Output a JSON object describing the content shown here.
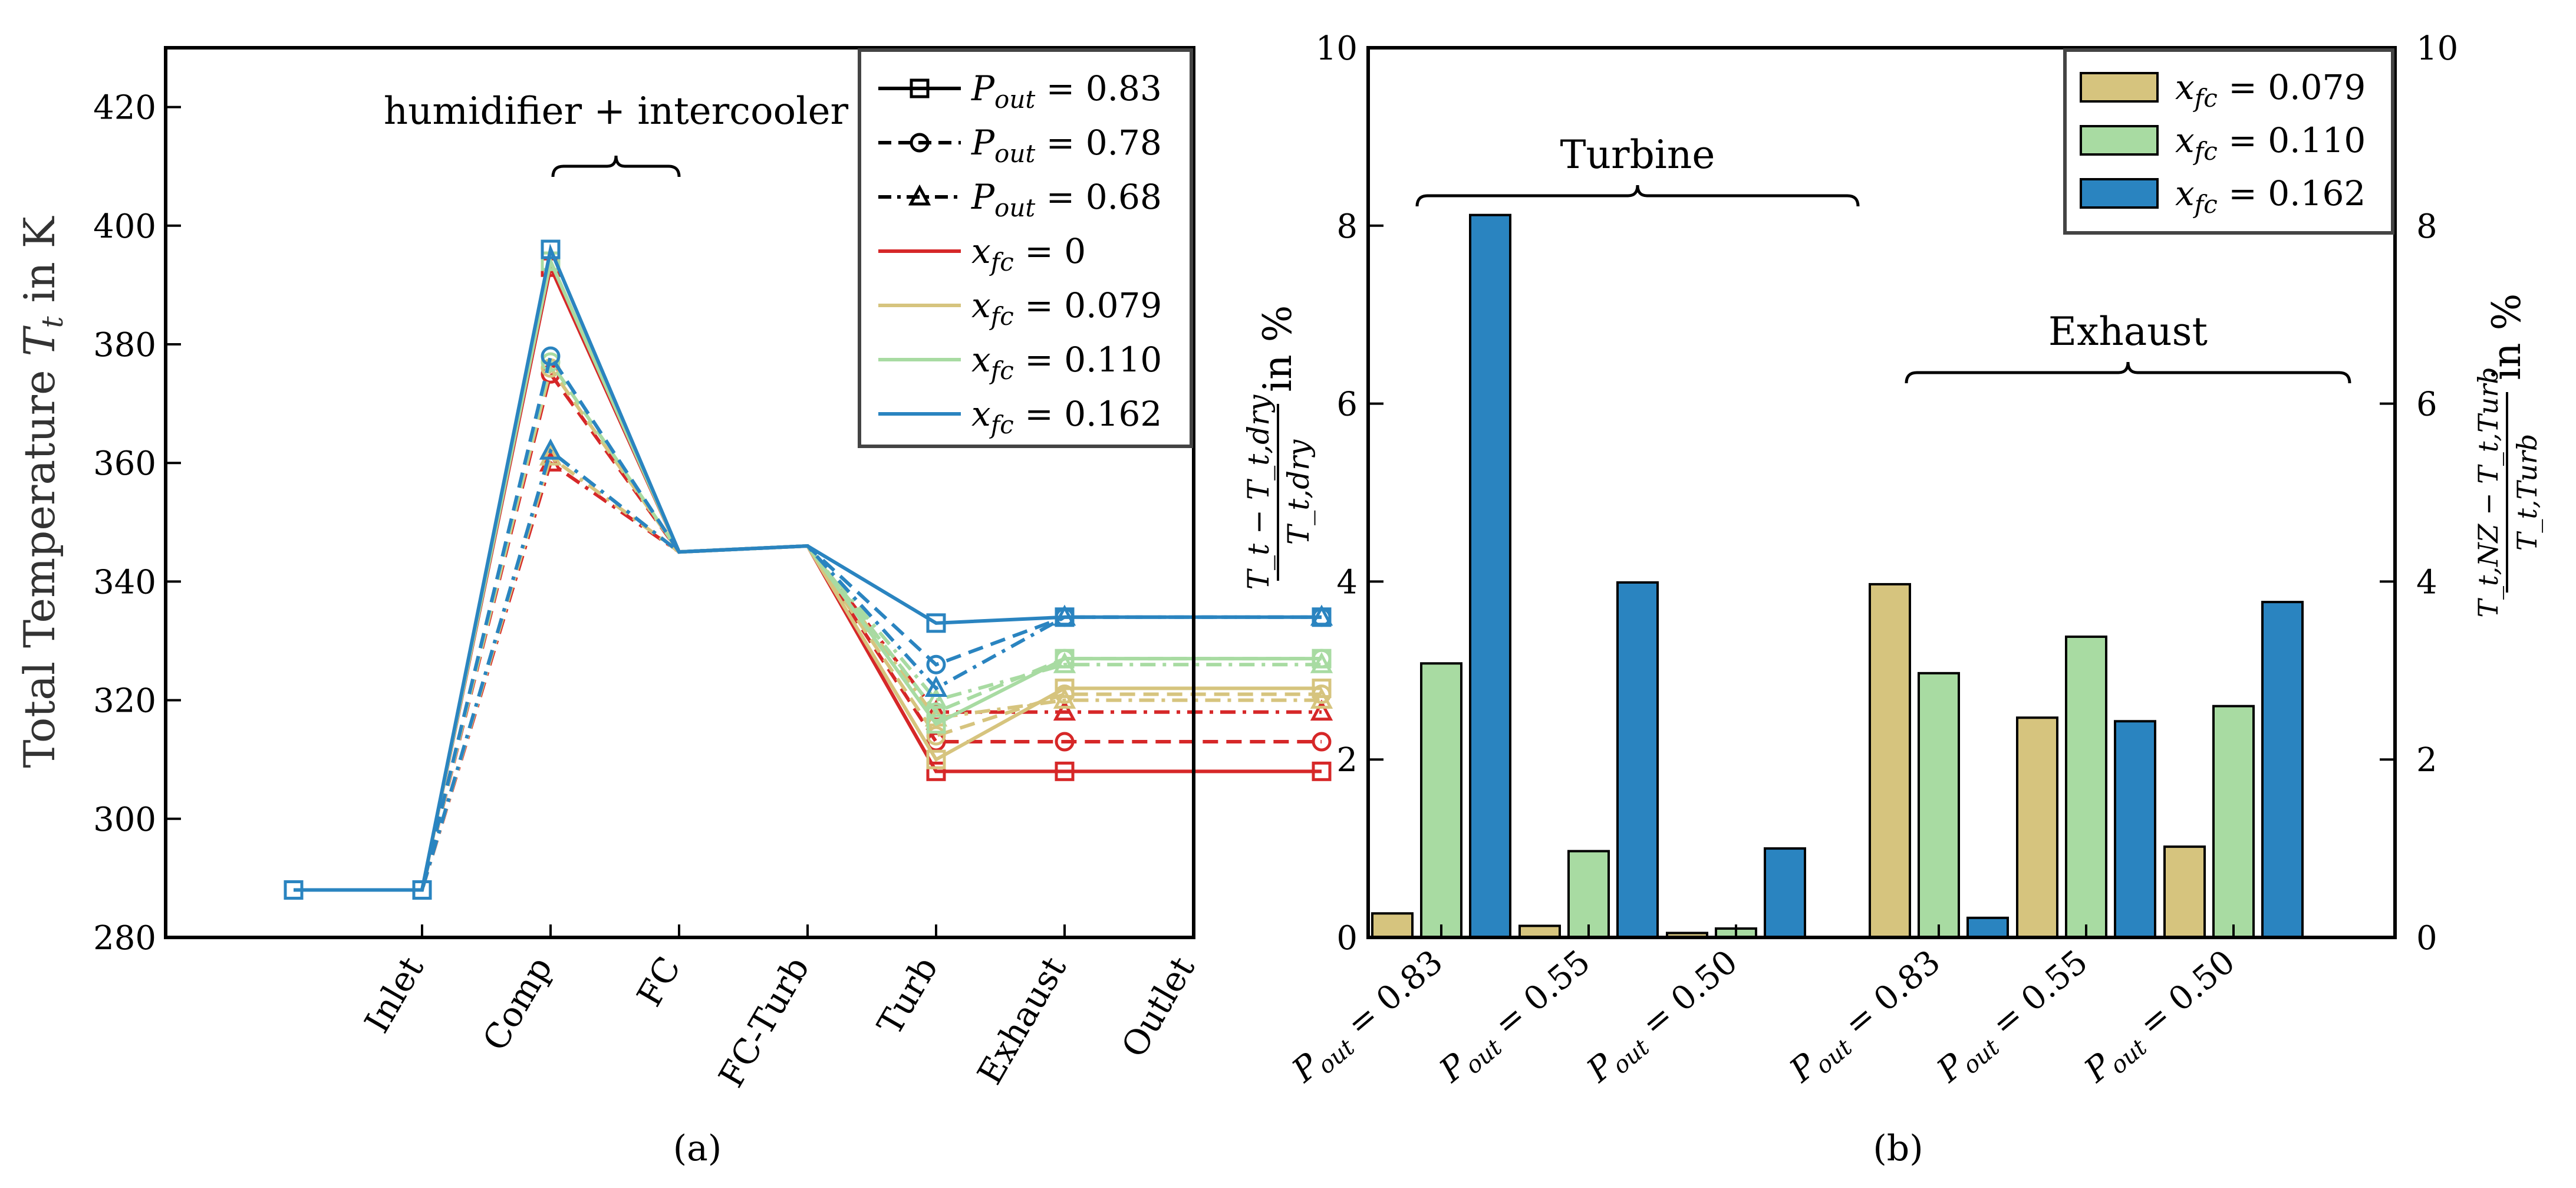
{
  "chart_data": [
    {
      "type": "line",
      "panel_label": "(a)",
      "title": "",
      "xlabel": "",
      "ylabel": "Total Temperature T_t in K",
      "ylabel_parts": {
        "pre": "Total Temperature ",
        "var": "T",
        "sub": "t",
        "post": " in K"
      },
      "ylim": [
        280,
        430
      ],
      "yticks": [
        "280",
        "300",
        "320",
        "340",
        "360",
        "380",
        "400",
        "420"
      ],
      "categories": [
        "Inlet",
        "Comp",
        "FC",
        "FC-Turb",
        "Turb",
        "Exhaust",
        "Outlet"
      ],
      "annotation": "humidifier + intercooler",
      "grid": false,
      "legend_position": "top-right",
      "legend": [
        {
          "label": "P_out = 0.83",
          "var": "P",
          "sub": "out",
          "rest": " = 0.83",
          "style": "solid",
          "marker": "square",
          "color": "#000000"
        },
        {
          "label": "P_out = 0.78",
          "var": "P",
          "sub": "out",
          "rest": " = 0.78",
          "style": "dashed",
          "marker": "circle",
          "color": "#000000"
        },
        {
          "label": "P_out = 0.68",
          "var": "P",
          "sub": "out",
          "rest": " = 0.68",
          "style": "dashdot",
          "marker": "triangle",
          "color": "#000000"
        },
        {
          "label": "x_fc = 0",
          "var": "x",
          "sub": "fc",
          "rest": " = 0",
          "style": "solid",
          "marker": "none",
          "color": "#d62728"
        },
        {
          "label": "x_fc = 0.079",
          "var": "x",
          "sub": "fc",
          "rest": " = 0.079",
          "style": "solid",
          "marker": "none",
          "color": "#d6c47e"
        },
        {
          "label": "x_fc = 0.110",
          "var": "x",
          "sub": "fc",
          "rest": " = 0.110",
          "style": "solid",
          "marker": "none",
          "color": "#a8dba2"
        },
        {
          "label": "x_fc = 0.162",
          "var": "x",
          "sub": "fc",
          "rest": " = 0.162",
          "style": "solid",
          "marker": "none",
          "color": "#2a84c0"
        }
      ],
      "series": [
        {
          "name": "x_fc=0, P_out=0.83",
          "color": "#d62728",
          "style": "solid",
          "marker": "square",
          "x": [
            0,
            1,
            2,
            3,
            4,
            5,
            6,
            7,
            8
          ],
          "values": [
            288,
            288,
            393,
            345,
            346,
            308,
            308,
            308,
            308
          ]
        },
        {
          "name": "x_fc=0, P_out=0.78",
          "color": "#d62728",
          "style": "dashed",
          "marker": "circle",
          "x": [
            0,
            1,
            2,
            3,
            4,
            5,
            6,
            7,
            8
          ],
          "values": [
            288,
            288,
            375,
            345,
            346,
            313,
            313,
            313,
            313
          ]
        },
        {
          "name": "x_fc=0, P_out=0.68",
          "color": "#d62728",
          "style": "dashdot",
          "marker": "triangle",
          "x": [
            0,
            1,
            2,
            3,
            4,
            5,
            6,
            7,
            8
          ],
          "values": [
            288,
            288,
            360,
            345,
            346,
            318,
            318,
            318,
            318
          ]
        },
        {
          "name": "x_fc=0.079, P_out=0.83",
          "color": "#d6c47e",
          "style": "solid",
          "marker": "square",
          "x": [
            0,
            1,
            2,
            3,
            4,
            5,
            6,
            7,
            8
          ],
          "values": [
            288,
            288,
            394,
            345,
            346,
            310,
            322,
            322,
            322
          ]
        },
        {
          "name": "x_fc=0.079, P_out=0.78",
          "color": "#d6c47e",
          "style": "dashed",
          "marker": "circle",
          "x": [
            0,
            1,
            2,
            3,
            4,
            5,
            6,
            7,
            8
          ],
          "values": [
            288,
            288,
            376,
            345,
            346,
            314,
            321,
            321,
            321
          ]
        },
        {
          "name": "x_fc=0.079, P_out=0.68",
          "color": "#d6c47e",
          "style": "dashdot",
          "marker": "triangle",
          "x": [
            0,
            1,
            2,
            3,
            4,
            5,
            6,
            7,
            8
          ],
          "values": [
            288,
            288,
            361,
            345,
            346,
            317,
            320,
            320,
            320
          ]
        },
        {
          "name": "x_fc=0.110, P_out=0.83",
          "color": "#a8dba2",
          "style": "solid",
          "marker": "square",
          "x": [
            0,
            1,
            2,
            3,
            4,
            5,
            6,
            7,
            8
          ],
          "values": [
            288,
            288,
            394,
            345,
            346,
            316,
            327,
            327,
            327
          ]
        },
        {
          "name": "x_fc=0.110, P_out=0.78",
          "color": "#a8dba2",
          "style": "dashed",
          "marker": "circle",
          "x": [
            0,
            1,
            2,
            3,
            4,
            5,
            6,
            7,
            8
          ],
          "values": [
            288,
            288,
            377,
            345,
            346,
            318,
            327,
            327,
            327
          ]
        },
        {
          "name": "x_fc=0.110, P_out=0.68",
          "color": "#a8dba2",
          "style": "dashdot",
          "marker": "triangle",
          "x": [
            0,
            1,
            2,
            3,
            4,
            5,
            6,
            7,
            8
          ],
          "values": [
            288,
            288,
            362,
            345,
            346,
            320,
            326,
            326,
            326
          ]
        },
        {
          "name": "x_fc=0.162, P_out=0.83",
          "color": "#2a84c0",
          "style": "solid",
          "marker": "square",
          "x": [
            0,
            1,
            2,
            3,
            4,
            5,
            6,
            7,
            8
          ],
          "values": [
            288,
            288,
            396,
            345,
            346,
            333,
            334,
            334,
            334
          ]
        },
        {
          "name": "x_fc=0.162, P_out=0.78",
          "color": "#2a84c0",
          "style": "dashed",
          "marker": "circle",
          "x": [
            0,
            1,
            2,
            3,
            4,
            5,
            6,
            7,
            8
          ],
          "values": [
            288,
            288,
            378,
            345,
            346,
            326,
            334,
            334,
            334
          ]
        },
        {
          "name": "x_fc=0.162, P_out=0.68",
          "color": "#2a84c0",
          "style": "dashdot",
          "marker": "triangle",
          "x": [
            0,
            1,
            2,
            3,
            4,
            5,
            6,
            7,
            8
          ],
          "values": [
            288,
            288,
            362,
            345,
            346,
            322,
            334,
            334,
            334
          ]
        }
      ]
    },
    {
      "type": "bar",
      "panel_label": "(b)",
      "title": "",
      "xlabel": "",
      "ylim": [
        0,
        10
      ],
      "yticks": [
        "0",
        "2",
        "4",
        "6",
        "8",
        "10"
      ],
      "left_ylabel": "(T_t − T_t,dry) / T_t,dry in %",
      "left_ylabel_parts": {
        "num": "T_t − T_t,dry",
        "den": "T_t,dry",
        "unit": "in %"
      },
      "right_ylabel": "(T_t,NZ − T_t,Turb) / T_t,Turb in %",
      "right_ylabel_parts": {
        "num": "T_t,NZ − T_t,Turb",
        "den": "T_t,Turb",
        "unit": "in %"
      },
      "groups": [
        "Turbine",
        "Exhaust"
      ],
      "categories": [
        "P_out = 0.83",
        "P_out = 0.55",
        "P_out = 0.50",
        "P_out = 0.83",
        "P_out = 0.55",
        "P_out = 0.50"
      ],
      "category_values": [
        "0.83",
        "0.55",
        "0.50",
        "0.83",
        "0.55",
        "0.50"
      ],
      "legend_position": "top-right",
      "legend": [
        {
          "label": "x_fc = 0.079",
          "var": "x",
          "sub": "fc",
          "rest": " = 0.079",
          "color": "#d6c47e"
        },
        {
          "label": "x_fc = 0.110",
          "var": "x",
          "sub": "fc",
          "rest": " = 0.110",
          "color": "#a8dba2"
        },
        {
          "label": "x_fc = 0.162",
          "var": "x",
          "sub": "fc",
          "rest": " = 0.162",
          "color": "#2a84c0"
        }
      ],
      "series": [
        {
          "name": "x_fc = 0.079",
          "color": "#d6c47e",
          "values": [
            0.27,
            0.13,
            0.05,
            3.97,
            2.47,
            1.02
          ]
        },
        {
          "name": "x_fc = 0.110",
          "color": "#a8dba2",
          "values": [
            3.08,
            0.97,
            0.1,
            2.97,
            3.38,
            2.6
          ]
        },
        {
          "name": "x_fc = 0.162",
          "color": "#2a84c0",
          "values": [
            8.12,
            3.99,
            1.0,
            0.22,
            2.43,
            3.77
          ]
        }
      ]
    }
  ]
}
